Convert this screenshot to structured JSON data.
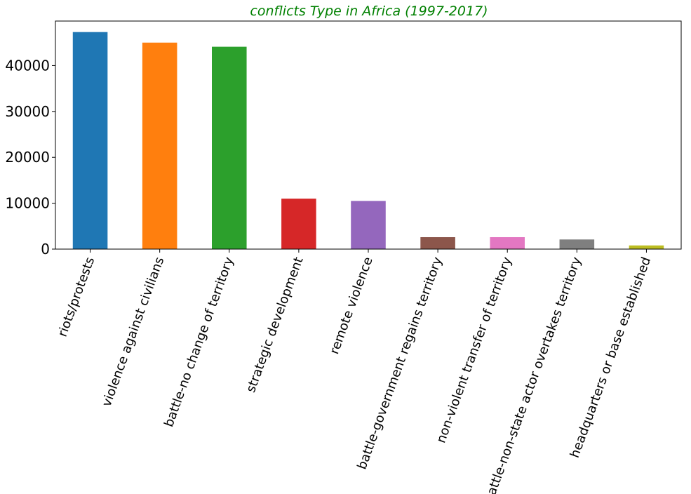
{
  "chart_data": {
    "type": "bar",
    "title": "conflicts Type in Africa (1997-2017)",
    "xlabel": "",
    "ylabel": "",
    "categories": [
      "riots/protests",
      "violence against civilians",
      "battle-no change of territory",
      "strategic development",
      "remote violence",
      "battle-government regains territory",
      "non-violent transfer of territory",
      "battle-non-state actor overtakes territory",
      "headquarters or base established"
    ],
    "values": [
      47300,
      45000,
      44100,
      11000,
      10500,
      2600,
      2600,
      2100,
      800
    ],
    "colors": [
      "#1f77b4",
      "#ff7f0e",
      "#2ca02c",
      "#d62728",
      "#9467bd",
      "#8c564b",
      "#e377c2",
      "#7f7f7f",
      "#bcbd22"
    ],
    "ylim": [
      0,
      49700
    ],
    "yticks": [
      0,
      10000,
      20000,
      30000,
      40000
    ],
    "ytick_labels": [
      "0",
      "10000",
      "20000",
      "30000",
      "40000"
    ],
    "grid": false,
    "legend": "none"
  }
}
